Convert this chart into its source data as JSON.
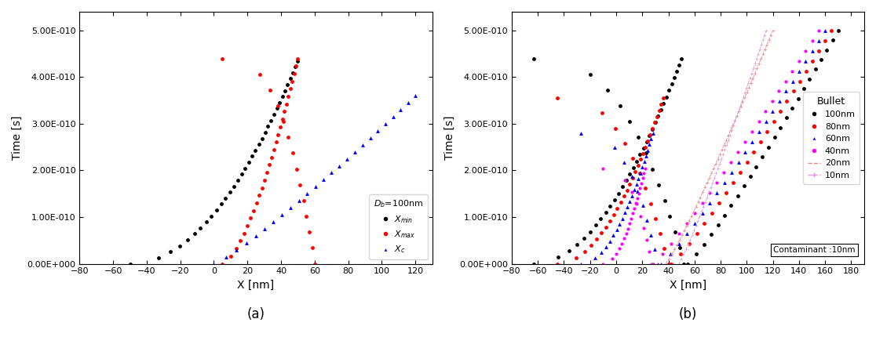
{
  "panel_a": {
    "xlabel": "X [nm]",
    "ylabel": "Time [s]",
    "xlim": [
      -80,
      130
    ],
    "ylim": [
      0,
      5.4e-10
    ],
    "xticks": [
      -80,
      -60,
      -40,
      -20,
      0,
      20,
      40,
      60,
      80,
      100,
      120
    ],
    "yticks": [
      0,
      1e-10,
      2e-10,
      3e-10,
      4e-10,
      5e-10
    ]
  },
  "panel_b": {
    "xlabel": "X [nm]",
    "ylabel": "Time [s]",
    "xlim": [
      -80,
      190
    ],
    "ylim": [
      0,
      5.4e-10
    ],
    "xticks": [
      -80,
      -60,
      -40,
      -20,
      0,
      20,
      40,
      60,
      80,
      100,
      120,
      140,
      160,
      180
    ],
    "yticks": [
      0,
      1e-10,
      2e-10,
      3e-10,
      4e-10,
      5e-10
    ]
  },
  "label_a": "(a)",
  "label_b": "(b)"
}
